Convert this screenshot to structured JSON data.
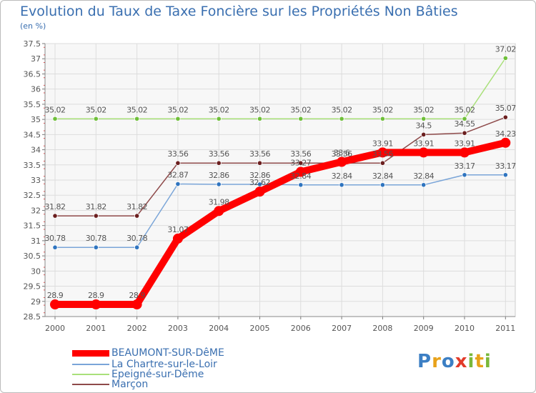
{
  "header": {
    "title": "Evolution du Taux de Taxe Foncière sur les Propriétés Non Bâties",
    "subtitle": "(en %)"
  },
  "logo": {
    "letters": [
      "P",
      "r",
      "o",
      "x",
      "i",
      "t",
      "i"
    ],
    "colors": [
      "#3c7fc4",
      "#e8a21a",
      "#3c7fc4",
      "#e23b2a",
      "#7ab83a",
      "#e8a21a",
      "#7ab83a"
    ]
  },
  "chart_data": {
    "type": "line",
    "title": "Evolution du Taux de Taxe Foncière sur les Propriétés Non Bâties",
    "ylabel": "(en %)",
    "xlabel": "",
    "x": [
      "2000",
      "2001",
      "2002",
      "2003",
      "2004",
      "2005",
      "2006",
      "2007",
      "2008",
      "2009",
      "2010",
      "2011"
    ],
    "ylim": [
      28.5,
      37.5
    ],
    "yticks": [
      "28.5",
      "29",
      "29.5",
      "30",
      "30.5",
      "31",
      "31.5",
      "32",
      "32.5",
      "33",
      "33.5",
      "34",
      "34.5",
      "35",
      "35.5",
      "36",
      "36.5",
      "37",
      "37.5"
    ],
    "grid": true,
    "legend_position": "bottom-left",
    "series": [
      {
        "name": "BEAUMONT-SUR-DêME",
        "color": "#ff0000",
        "marker_color": "#ff0000",
        "emphasis": true,
        "values": [
          28.9,
          28.9,
          28.9,
          31.07,
          31.98,
          32.62,
          33.27,
          33.6,
          33.91,
          33.91,
          33.91,
          34.23
        ],
        "labels": [
          "28.9",
          "28.9",
          "28.9",
          "31.07",
          "31.98",
          "32.62",
          "33.27",
          "33.6",
          "33.91",
          "33.91",
          "33.91",
          "34.23"
        ]
      },
      {
        "name": "La Chartre-sur-le-Loir",
        "color": "#7aa5d8",
        "marker_color": "#2f74bf",
        "emphasis": false,
        "values": [
          30.78,
          30.78,
          30.78,
          32.87,
          32.86,
          32.86,
          32.84,
          32.84,
          32.84,
          32.84,
          33.17,
          33.17
        ],
        "labels": [
          "30.78",
          "30.78",
          "30.78",
          "32.87",
          "32.86",
          "32.86",
          "32.84",
          "32.84",
          "32.84",
          "32.84",
          "33.17",
          "33.17"
        ]
      },
      {
        "name": "Epeigné-sur-Dême",
        "color": "#a9e07a",
        "marker_color": "#6fbf3a",
        "emphasis": false,
        "values": [
          35.02,
          35.02,
          35.02,
          35.02,
          35.02,
          35.02,
          35.02,
          35.02,
          35.02,
          35.02,
          35.02,
          37.02
        ],
        "labels": [
          "35.02",
          "35.02",
          "35.02",
          "35.02",
          "35.02",
          "35.02",
          "35.02",
          "35.02",
          "35.02",
          "35.02",
          "35.02",
          "37.02"
        ]
      },
      {
        "name": "Marçon",
        "color": "#8e4a4a",
        "marker_color": "#6b1f1f",
        "emphasis": false,
        "values": [
          31.82,
          31.82,
          31.82,
          33.56,
          33.56,
          33.56,
          33.56,
          33.56,
          33.56,
          34.5,
          34.55,
          35.07
        ],
        "labels": [
          "31.82",
          "31.82",
          "31.82",
          "33.56",
          "33.56",
          "33.56",
          "33.56",
          "33.56",
          "33.56",
          "34.5",
          "34.55",
          "35.07"
        ]
      }
    ]
  }
}
